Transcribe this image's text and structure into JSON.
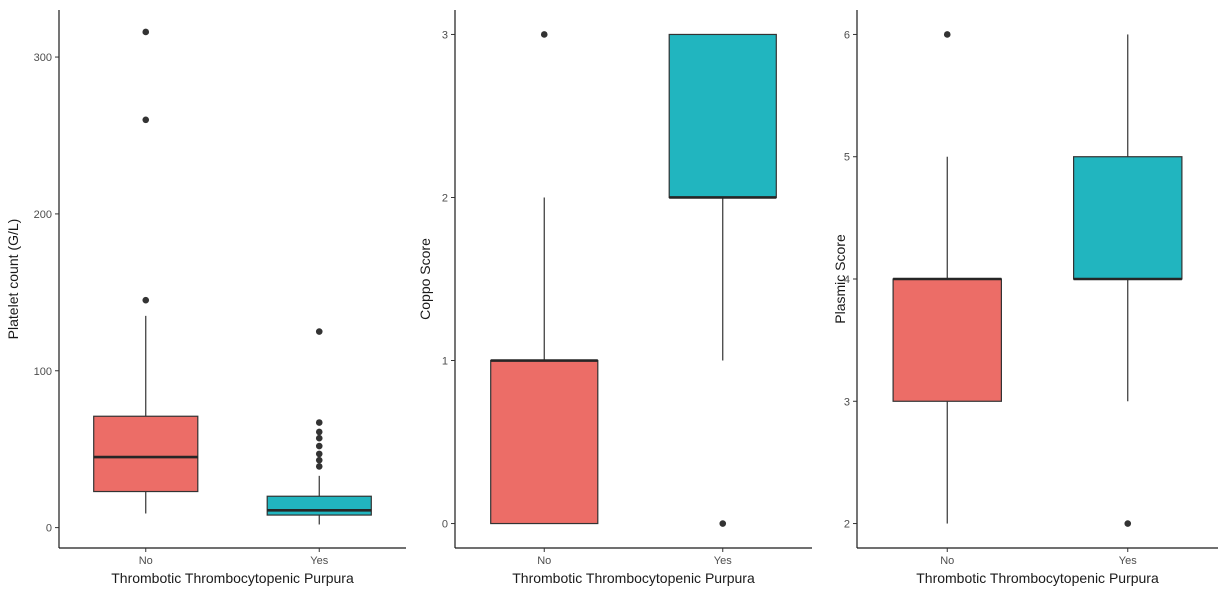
{
  "chart_data": [
    {
      "type": "box",
      "xlabel": "Thrombotic Thrombocytopenic Purpura",
      "ylabel": "Platelet count (G/L)",
      "ylim": [
        -13,
        330
      ],
      "yticks": [
        0,
        100,
        200,
        300
      ],
      "categories": [
        "No",
        "Yes"
      ],
      "boxes": [
        {
          "category": "No",
          "color": "#ec6d67",
          "q1": 23,
          "median": 45,
          "q3": 71,
          "whisker_low": 9,
          "whisker_high": 135,
          "outliers": [
            145,
            260,
            316
          ]
        },
        {
          "category": "Yes",
          "color": "#21b5bf",
          "q1": 8,
          "median": 11,
          "q3": 20,
          "whisker_low": 2,
          "whisker_high": 33,
          "outliers": [
            39,
            43,
            47,
            52,
            57,
            61,
            67,
            125
          ]
        }
      ]
    },
    {
      "type": "box",
      "xlabel": "Thrombotic Thrombocytopenic Purpura",
      "ylabel": "Coppo Score",
      "ylim": [
        -0.15,
        3.15
      ],
      "yticks": [
        0,
        1,
        2,
        3
      ],
      "categories": [
        "No",
        "Yes"
      ],
      "boxes": [
        {
          "category": "No",
          "color": "#ec6d67",
          "q1": 0,
          "median": 1,
          "q3": 1,
          "whisker_low": 0,
          "whisker_high": 2,
          "outliers": [
            3
          ]
        },
        {
          "category": "Yes",
          "color": "#21b5bf",
          "q1": 2,
          "median": 2,
          "q3": 3,
          "whisker_low": 1,
          "whisker_high": 3,
          "outliers": [
            0
          ]
        }
      ]
    },
    {
      "type": "box",
      "xlabel": "Thrombotic Thrombocytopenic Purpura",
      "ylabel": "Plasmic Score",
      "ylim": [
        1.8,
        6.2
      ],
      "yticks": [
        2,
        3,
        4,
        5,
        6
      ],
      "categories": [
        "No",
        "Yes"
      ],
      "boxes": [
        {
          "category": "No",
          "color": "#ec6d67",
          "q1": 3,
          "median": 4,
          "q3": 4,
          "whisker_low": 2,
          "whisker_high": 5,
          "outliers": [
            6
          ]
        },
        {
          "category": "Yes",
          "color": "#21b5bf",
          "q1": 4,
          "median": 4,
          "q3": 5,
          "whisker_low": 3,
          "whisker_high": 6,
          "outliers": [
            2
          ]
        }
      ]
    }
  ]
}
